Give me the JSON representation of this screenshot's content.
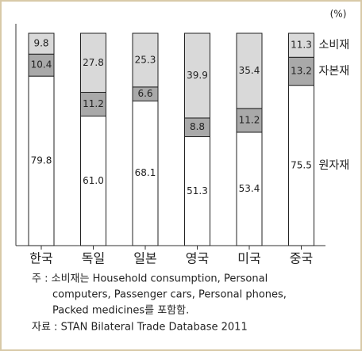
{
  "chart_data": {
    "type": "stacked-bar",
    "unit": "(%)",
    "categories": [
      "한국",
      "독일",
      "일본",
      "영국",
      "미국",
      "중국"
    ],
    "ylim": [
      0,
      100
    ],
    "series": [
      {
        "name": "원자재",
        "color": "#ffffff",
        "values": [
          79.8,
          61.0,
          68.1,
          51.3,
          53.4,
          75.5
        ],
        "value_labels": [
          "79.8",
          "61.0",
          "68.1",
          "51.3",
          "53.4",
          "75.5"
        ]
      },
      {
        "name": "자본재",
        "color": "#a9a9a9",
        "values": [
          10.4,
          11.2,
          6.6,
          8.8,
          11.2,
          13.2
        ],
        "value_labels": [
          "10.4",
          "11.2",
          "6.6",
          "8.8",
          "11.2",
          "13.2"
        ]
      },
      {
        "name": "소비재",
        "color": "#d9d9d9",
        "values": [
          9.8,
          27.8,
          25.3,
          39.9,
          35.4,
          11.3
        ],
        "value_labels": [
          "9.8",
          "27.8",
          "25.3",
          "39.9",
          "35.4",
          "11.3"
        ]
      }
    ],
    "notes": [
      "주 : 소비재는 Household consumption, Personal",
      "computers, Passenger cars, Personal phones,",
      "Packed medicines를 포함함."
    ],
    "source": "자료 : STAN Bilateral Trade Database 2011"
  }
}
